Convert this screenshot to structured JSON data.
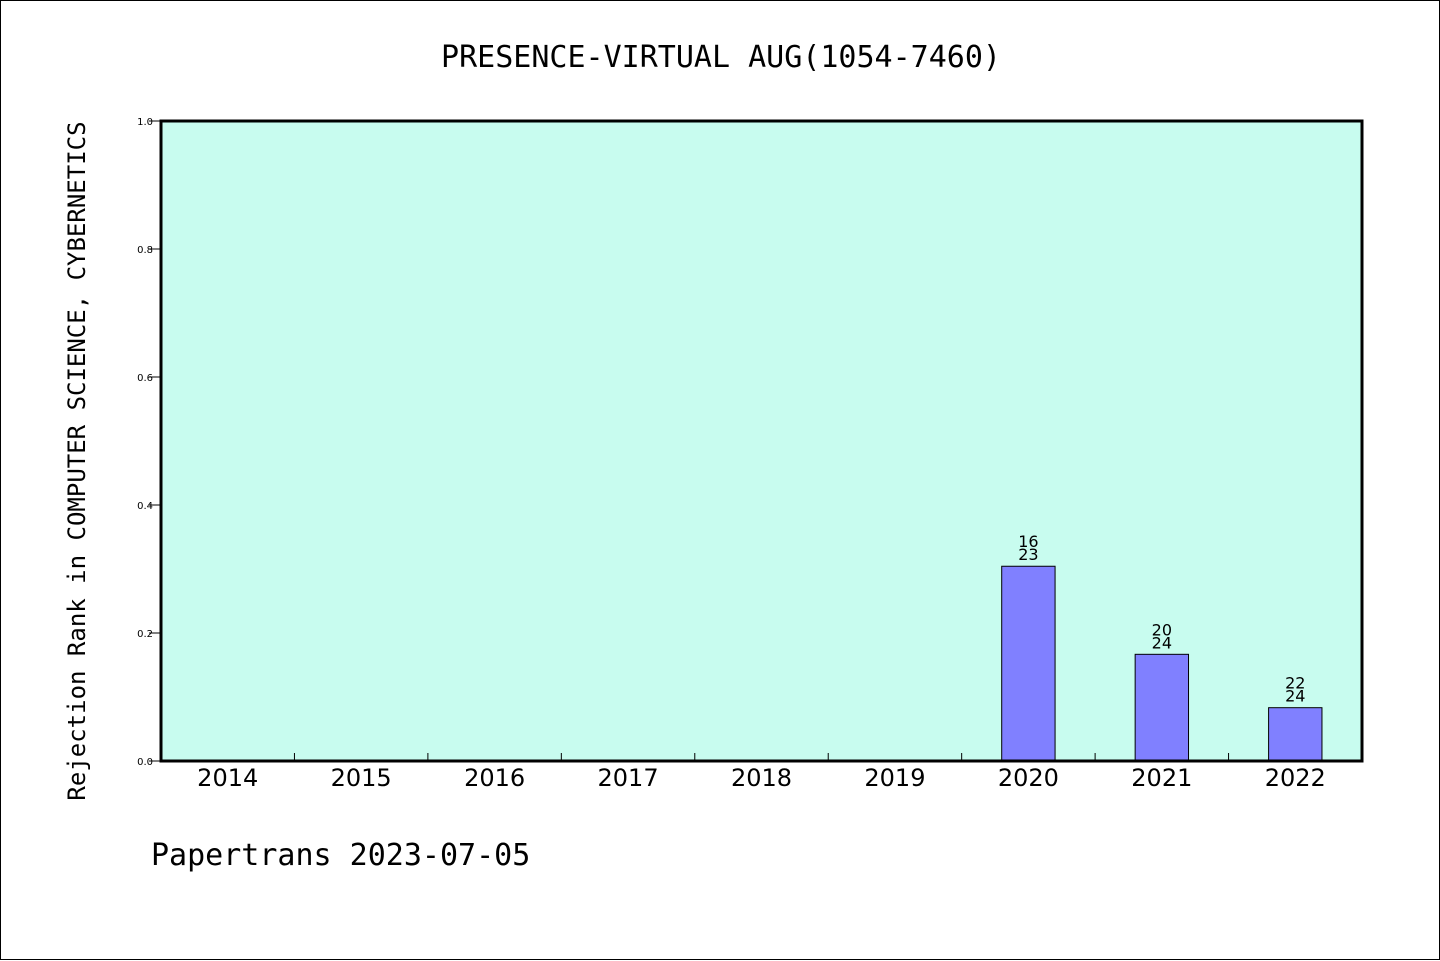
{
  "chart_data": {
    "type": "bar",
    "title": "PRESENCE-VIRTUAL AUG(1054-7460)",
    "xlabel": "",
    "ylabel": "Rejection Rank in COMPUTER SCIENCE, CYBERNETICS",
    "ylim": [
      0,
      1.0
    ],
    "yticks": [
      "0.0",
      "0.2",
      "0.4",
      "0.6",
      "0.8",
      "1.0"
    ],
    "categories": [
      "2014",
      "2015",
      "2016",
      "2017",
      "2018",
      "2019",
      "2020",
      "2021",
      "2022"
    ],
    "values": [
      null,
      null,
      null,
      null,
      null,
      null,
      0.3043,
      0.1667,
      0.0833
    ],
    "labels": [
      null,
      null,
      null,
      null,
      null,
      null,
      {
        "top": "16",
        "bottom": "23"
      },
      {
        "top": "20",
        "bottom": "24"
      },
      {
        "top": "22",
        "bottom": "24"
      }
    ],
    "plot_background": "#c8fcef",
    "bar_color": "#8080ff",
    "grid": false
  },
  "footer": "Papertrans 2023-07-05"
}
